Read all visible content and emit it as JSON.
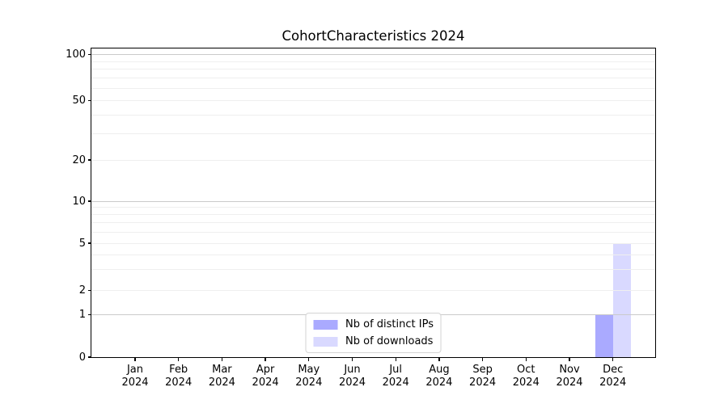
{
  "chart_data": {
    "type": "bar",
    "title": "CohortCharacteristics 2024",
    "categories": [
      "Jan",
      "Feb",
      "Mar",
      "Apr",
      "May",
      "Jun",
      "Jul",
      "Aug",
      "Sep",
      "Oct",
      "Nov",
      "Dec"
    ],
    "x_year_label": "2024",
    "series": [
      {
        "name": "Nb of distinct IPs",
        "color": "#aaaaff",
        "values": [
          0,
          0,
          0,
          0,
          0,
          0,
          0,
          0,
          0,
          0,
          0,
          1
        ]
      },
      {
        "name": "Nb of downloads",
        "color": "#d9d9ff",
        "values": [
          0,
          0,
          0,
          0,
          0,
          0,
          0,
          0,
          0,
          0,
          0,
          5
        ]
      }
    ],
    "yaxis": {
      "scale": "symlog",
      "tick_values": [
        0,
        1,
        2,
        5,
        10,
        20,
        50,
        100
      ],
      "minor_gridline_values": [
        3,
        4,
        6,
        7,
        8,
        9,
        30,
        40,
        60,
        70,
        80,
        90
      ],
      "major_gridline_values": [
        1,
        10,
        100
      ],
      "ylim_top": 110
    },
    "legend": {
      "position": "lower center"
    },
    "grid": true,
    "colors": {
      "major_gridline": "#cacaca",
      "minor_gridline": "#efefef",
      "spine": "#000000",
      "text": "#000000"
    }
  }
}
